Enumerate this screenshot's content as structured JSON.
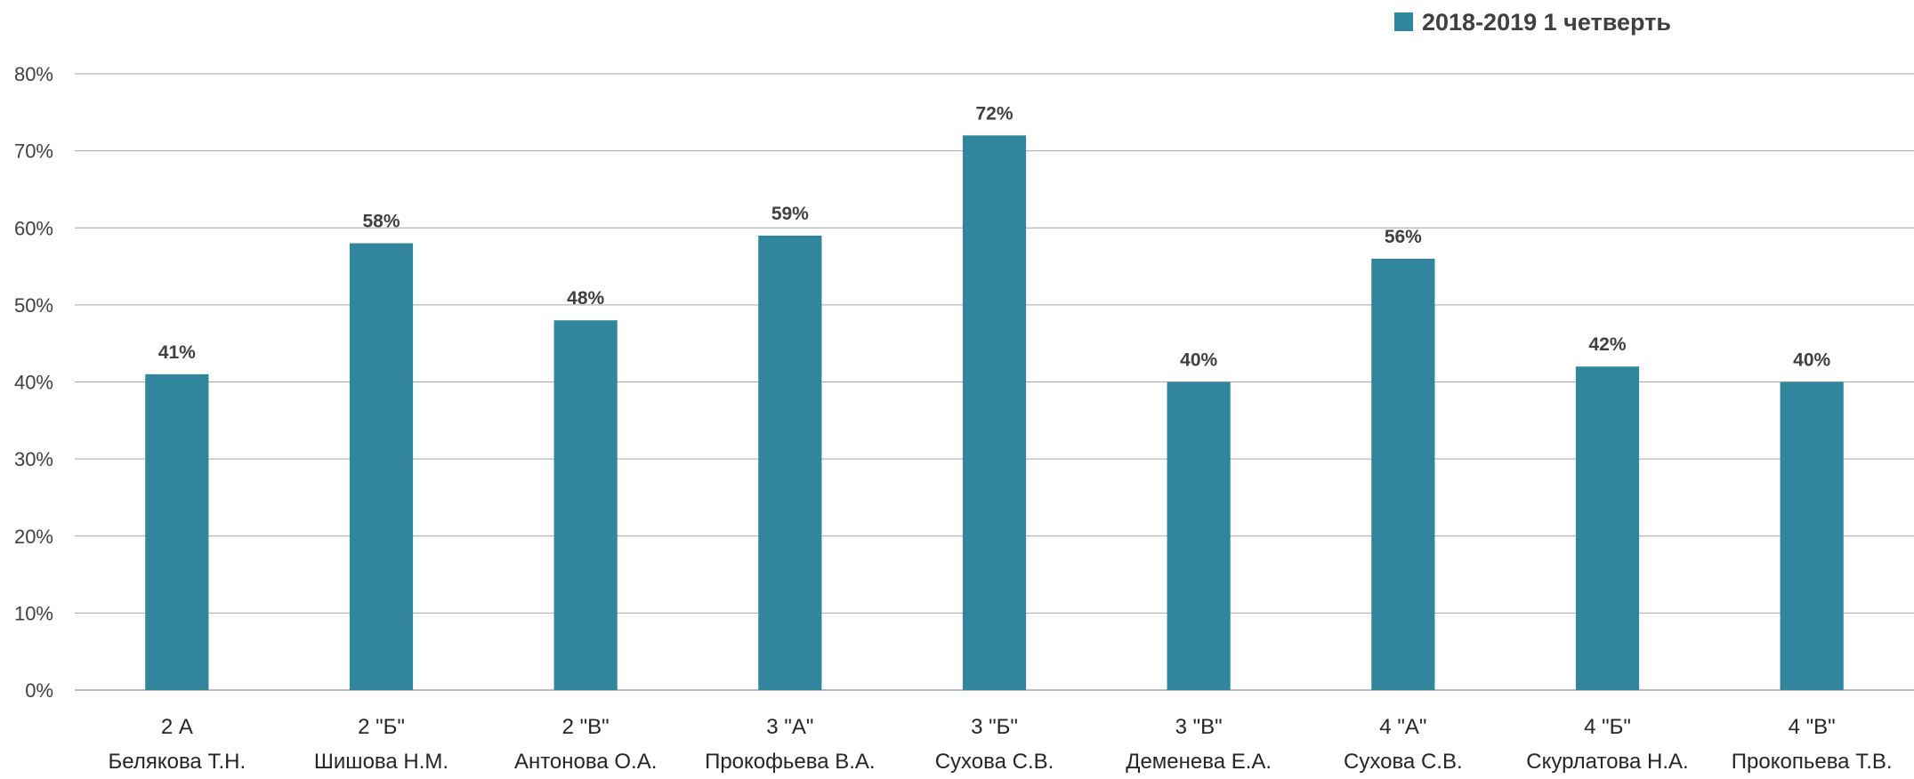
{
  "chart_data": {
    "type": "bar",
    "title": "",
    "xlabel": "",
    "ylabel": "",
    "ylim": [
      0,
      0.8
    ],
    "y_ticks": [
      "0%",
      "10%",
      "20%",
      "30%",
      "40%",
      "50%",
      "60%",
      "70%",
      "80%"
    ],
    "grid": true,
    "legend_position": "top-right",
    "categories": [
      {
        "line1": "2 А",
        "line2": "Белякова Т.Н."
      },
      {
        "line1": "2 \"Б\"",
        "line2": "Шишова Н.М."
      },
      {
        "line1": "2 \"В\"",
        "line2": "Антонова О.А."
      },
      {
        "line1": "3 \"А\"",
        "line2": "Прокофьева В.А."
      },
      {
        "line1": "3 \"Б\"",
        "line2": "Сухова С.В."
      },
      {
        "line1": "3 \"В\"",
        "line2": "Деменева Е.А."
      },
      {
        "line1": "4 \"А\"",
        "line2": "Сухова С.В."
      },
      {
        "line1": "4 \"Б\"",
        "line2": "Скурлатова Н.А."
      },
      {
        "line1": "4 \"В\"",
        "line2": "Прокопьева Т.В."
      }
    ],
    "series": [
      {
        "name": "2018-2019 1 четверть",
        "color": "#31859C",
        "values": [
          0.41,
          0.58,
          0.48,
          0.59,
          0.72,
          0.4,
          0.56,
          0.42,
          0.4
        ],
        "data_labels": [
          "41%",
          "58%",
          "48%",
          "59%",
          "72%",
          "40%",
          "56%",
          "42%",
          "40%"
        ]
      }
    ],
    "colors": {
      "bar": "#31859C",
      "gridline": "#A6A6A6",
      "axis_text": "#404040"
    }
  }
}
